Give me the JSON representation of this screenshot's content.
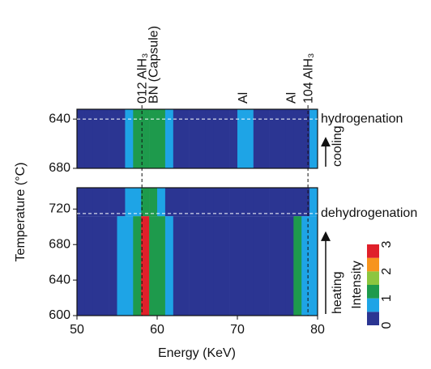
{
  "chart_data": {
    "type": "heatmap",
    "xlabel": "Energy (KeV)",
    "ylabel": "Temperature (°C)",
    "xlim": [
      50,
      80
    ],
    "xticks": [
      50,
      60,
      70,
      80
    ],
    "x_edges": [
      50,
      51,
      52,
      53,
      54,
      55,
      56,
      57,
      58,
      59,
      60,
      61,
      62,
      63,
      64,
      65,
      66,
      67,
      68,
      69,
      70,
      71,
      72,
      73,
      74,
      75,
      76,
      77,
      78,
      79,
      80
    ],
    "vlines": [
      58.1,
      78.8
    ],
    "annotations": [
      {
        "text": "012 AlH₃",
        "x": 58.2
      },
      {
        "text": "BN (Capsule)",
        "x": 59.6
      },
      {
        "text": "Al",
        "x": 70.8
      },
      {
        "text": "Al",
        "x": 76.8
      },
      {
        "text": "104 AlH₃",
        "x": 78.9
      }
    ],
    "panels": [
      {
        "ylim": [
          632,
          680
        ],
        "y_reversed": true,
        "yticks": [
          640,
          680
        ],
        "y_edges": [
          632,
          680
        ],
        "z": [
          [
            0.1,
            0.1,
            0.1,
            0.1,
            0.2,
            0.3,
            0.7,
            1.0,
            1.3,
            1.1,
            1.0,
            0.6,
            0.4,
            0.4,
            0.4,
            0.4,
            0.3,
            0.3,
            0.3,
            0.3,
            0.5,
            0.8,
            0.3,
            0.3,
            0.3,
            0.3,
            0.3,
            0.4,
            0.3,
            0.6
          ]
        ],
        "hline": 640,
        "line_label": "hydrogenation",
        "arrow_label": "cooling"
      },
      {
        "ylim": [
          600,
          744
        ],
        "y_reversed": false,
        "yticks": [
          600,
          640,
          680,
          720
        ],
        "y_edges": [
          600,
          712,
          744
        ],
        "z": [
          [
            0,
            0,
            0,
            0,
            0.3,
            0.6,
            0.9,
            1.3,
            2.8,
            1.4,
            1.1,
            0.5,
            0.3,
            0.3,
            0.3,
            0.2,
            0.2,
            0.2,
            0.2,
            0.2,
            0.3,
            0.3,
            0.2,
            0.2,
            0.2,
            0.2,
            0.2,
            1.2,
            0.5,
            0.8
          ],
          [
            0,
            0,
            0,
            0,
            0.2,
            0.4,
            0.6,
            0.9,
            1.1,
            1.0,
            0.8,
            0.4,
            0.2,
            0.2,
            0.2,
            0.2,
            0.2,
            0.2,
            0.2,
            0.2,
            0.2,
            0.2,
            0.2,
            0.2,
            0.2,
            0.2,
            0.2,
            0.4,
            0.3,
            0.5
          ]
        ],
        "hline": 715,
        "line_label": "dehydrogenation",
        "arrow_label": "heating"
      }
    ],
    "colorbar": {
      "label": "Intensity",
      "ticks": [
        0,
        1,
        2,
        3
      ],
      "colors": [
        "#2b3592",
        "#1ea4e6",
        "#1e9a4c",
        "#8cc63f",
        "#f7941d",
        "#e0202a"
      ]
    }
  }
}
